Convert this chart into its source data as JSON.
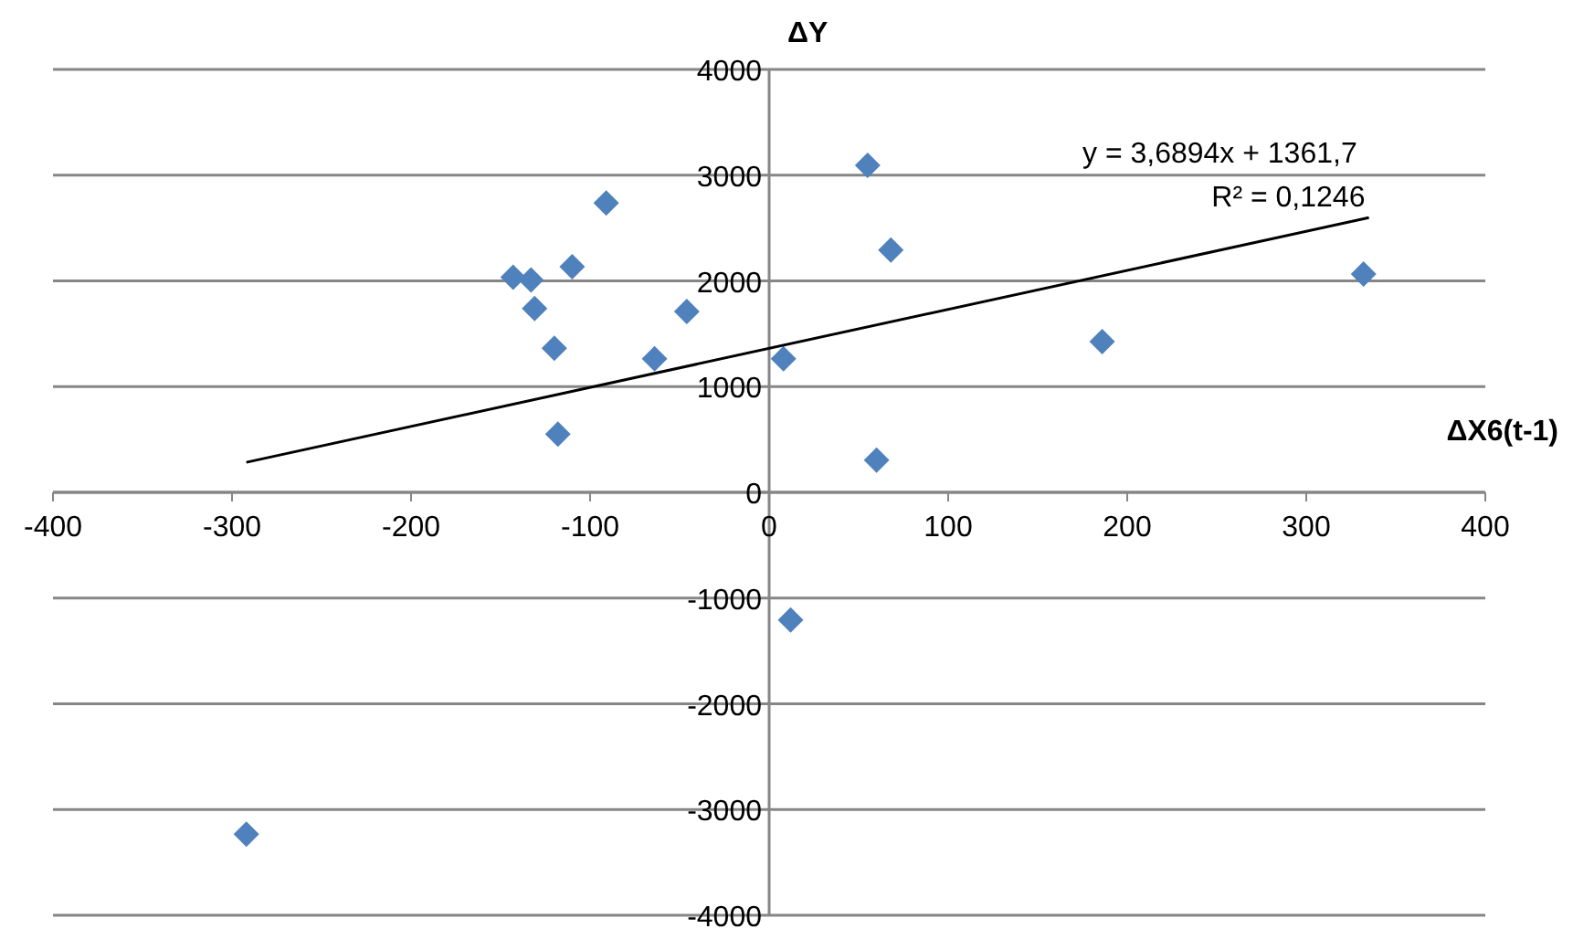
{
  "chart_data": {
    "type": "scatter",
    "xlabel": "ΔX6(t-1)",
    "ylabel": "ΔY",
    "xlim": [
      -400,
      400
    ],
    "xticks": [
      -400,
      -300,
      -200,
      -100,
      0,
      100,
      200,
      300,
      400
    ],
    "ylim": [
      -4000,
      4000
    ],
    "yticks": [
      -4000,
      -3000,
      -2000,
      -1000,
      0,
      1000,
      2000,
      3000,
      4000
    ],
    "grid": "y",
    "marker": "diamond",
    "annotations": [
      "y = 3,6894x + 1361,7",
      "R² = 0,1246"
    ],
    "series": [
      {
        "color": "#4f81bd",
        "x": [
          -143,
          -133,
          -110,
          -91,
          -131,
          -46,
          -120,
          -64,
          -118,
          55,
          68,
          332,
          186,
          8,
          60,
          12,
          -292
        ],
        "values": [
          2035,
          2008,
          2133,
          2737,
          1739,
          1710,
          1362,
          1264,
          551,
          3092,
          2292,
          2064,
          1425,
          1264,
          305,
          -1208,
          -3234
        ]
      },
      {
        "type": "line",
        "color": "#000000",
        "marker": "none",
        "x": [
          -292,
          335
        ],
        "values": [
          284,
          2598
        ]
      }
    ]
  }
}
